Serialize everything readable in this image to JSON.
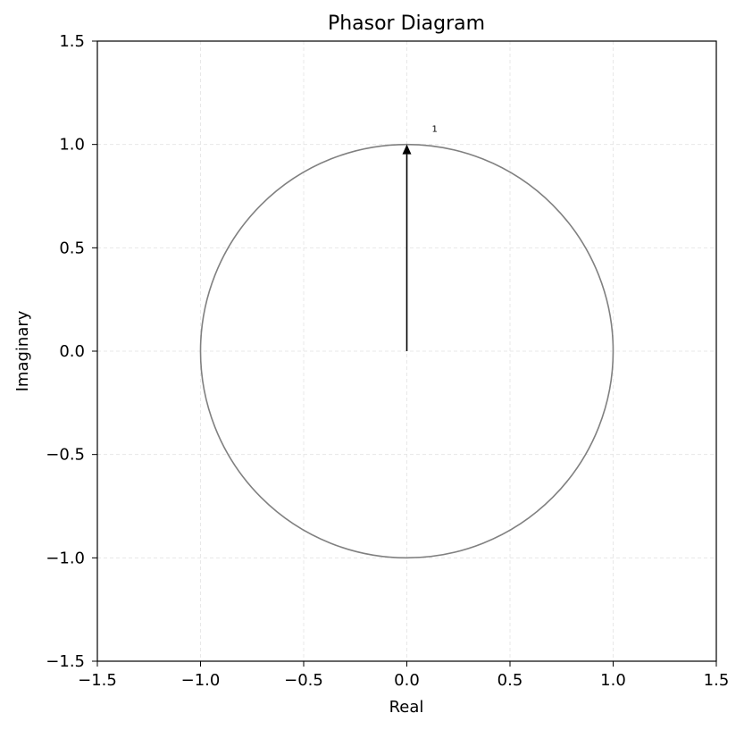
{
  "chart_data": {
    "type": "phasor",
    "title": "Phasor Diagram",
    "xlabel": "Real",
    "ylabel": "Imaginary",
    "xlim": [
      -1.5,
      1.5
    ],
    "ylim": [
      -1.5,
      1.5
    ],
    "xticks": [
      -1.5,
      -1.0,
      -0.5,
      0.0,
      0.5,
      1.0,
      1.5
    ],
    "yticks": [
      -1.5,
      -1.0,
      -0.5,
      0.0,
      0.5,
      1.0,
      1.5
    ],
    "xtick_labels": [
      "−1.5",
      "−1.0",
      "−0.5",
      "0.0",
      "0.5",
      "1.0",
      "1.5"
    ],
    "ytick_labels": [
      "−1.5",
      "−1.0",
      "−0.5",
      "0.0",
      "0.5",
      "1.0",
      "1.5"
    ],
    "grid": true,
    "unit_circle": {
      "radius": 1.0,
      "color": "#808080"
    },
    "phasors": [
      {
        "label": "1",
        "real": 0.0,
        "imag": 1.0,
        "color": "#000000"
      }
    ]
  }
}
